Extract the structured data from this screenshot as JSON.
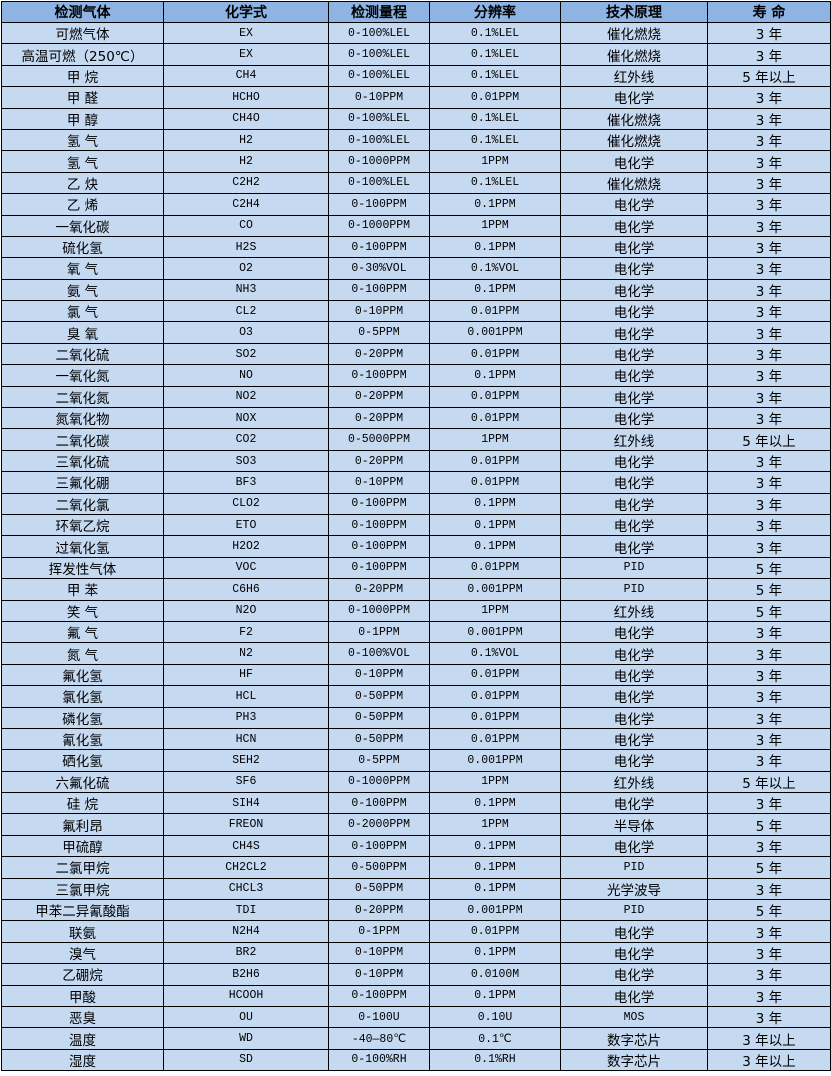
{
  "colors": {
    "header_bg": "#8db4e2",
    "row_bg": "#c5d9f1",
    "border": "#000000"
  },
  "headers": [
    "检测气体",
    "化学式",
    "检测量程",
    "分辨率",
    "技术原理",
    "寿 命"
  ],
  "rows": [
    [
      "可燃气体",
      "EX",
      "0-100%LEL",
      "0.1%LEL",
      "催化燃烧",
      "3 年"
    ],
    [
      "高温可燃（250℃）",
      "EX",
      "0-100%LEL",
      "0.1%LEL",
      "催化燃烧",
      "3 年"
    ],
    [
      "甲 烷",
      "CH4",
      "0-100%LEL",
      "0.1%LEL",
      "红外线",
      "5 年以上"
    ],
    [
      "甲 醛",
      "HCHO",
      "0-10PPM",
      "0.01PPM",
      "电化学",
      "3 年"
    ],
    [
      "甲 醇",
      "CH4O",
      "0-100%LEL",
      "0.1%LEL",
      "催化燃烧",
      "3 年"
    ],
    [
      "氢 气",
      "H2",
      "0-100%LEL",
      "0.1%LEL",
      "催化燃烧",
      "3 年"
    ],
    [
      "氢 气",
      "H2",
      "0-1000PPM",
      "1PPM",
      "电化学",
      "3 年"
    ],
    [
      "乙 炔",
      "C2H2",
      "0-100%LEL",
      "0.1%LEL",
      "催化燃烧",
      "3 年"
    ],
    [
      "乙 烯",
      "C2H4",
      "0-100PPM",
      "0.1PPM",
      "电化学",
      "3 年"
    ],
    [
      "一氧化碳",
      "CO",
      "0-1000PPM",
      "1PPM",
      "电化学",
      "3 年"
    ],
    [
      "硫化氢",
      "H2S",
      "0-100PPM",
      "0.1PPM",
      "电化学",
      "3 年"
    ],
    [
      "氧 气",
      "O2",
      "0-30%VOL",
      "0.1%VOL",
      "电化学",
      "3 年"
    ],
    [
      "氨 气",
      "NH3",
      "0-100PPM",
      "0.1PPM",
      "电化学",
      "3 年"
    ],
    [
      "氯 气",
      "CL2",
      "0-10PPM",
      "0.01PPM",
      "电化学",
      "3 年"
    ],
    [
      "臭 氧",
      "O3",
      "0-5PPM",
      "0.001PPM",
      "电化学",
      "3 年"
    ],
    [
      "二氧化硫",
      "SO2",
      "0-20PPM",
      "0.01PPM",
      "电化学",
      "3 年"
    ],
    [
      "一氧化氮",
      "NO",
      "0-100PPM",
      "0.1PPM",
      "电化学",
      "3 年"
    ],
    [
      "二氧化氮",
      "NO2",
      "0-20PPM",
      "0.01PPM",
      "电化学",
      "3 年"
    ],
    [
      "氮氧化物",
      "NOX",
      "0-20PPM",
      "0.01PPM",
      "电化学",
      "3 年"
    ],
    [
      "二氧化碳",
      "CO2",
      "0-5000PPM",
      "1PPM",
      "红外线",
      "5 年以上"
    ],
    [
      "三氧化硫",
      "SO3",
      "0-20PPM",
      "0.01PPM",
      "电化学",
      "3 年"
    ],
    [
      "三氟化硼",
      "BF3",
      "0-10PPM",
      "0.01PPM",
      "电化学",
      "3 年"
    ],
    [
      "二氧化氯",
      "CLO2",
      "0-100PPM",
      "0.1PPM",
      "电化学",
      "3 年"
    ],
    [
      "环氧乙烷",
      "ETO",
      "0-100PPM",
      "0.1PPM",
      "电化学",
      "3 年"
    ],
    [
      "过氧化氢",
      "H2O2",
      "0-100PPM",
      "0.1PPM",
      "电化学",
      "3 年"
    ],
    [
      "挥发性气体",
      "VOC",
      "0-100PPM",
      "0.01PPM",
      "PID",
      "5 年"
    ],
    [
      "甲 苯",
      "C6H6",
      "0-20PPM",
      "0.001PPM",
      "PID",
      "5 年"
    ],
    [
      "笑 气",
      "N2O",
      "0-1000PPM",
      "1PPM",
      "红外线",
      "5 年"
    ],
    [
      "氟 气",
      "F2",
      "0-1PPM",
      "0.001PPM",
      "电化学",
      "3 年"
    ],
    [
      "氮 气",
      "N2",
      "0-100%VOL",
      "0.1%VOL",
      "电化学",
      "3 年"
    ],
    [
      "氟化氢",
      "HF",
      "0-10PPM",
      "0.01PPM",
      "电化学",
      "3 年"
    ],
    [
      "氯化氢",
      "HCL",
      "0-50PPM",
      "0.01PPM",
      "电化学",
      "3 年"
    ],
    [
      "磷化氢",
      "PH3",
      "0-50PPM",
      "0.01PPM",
      "电化学",
      "3 年"
    ],
    [
      "氰化氢",
      "HCN",
      "0-50PPM",
      "0.01PPM",
      "电化学",
      "3 年"
    ],
    [
      "硒化氢",
      "SEH2",
      "0-5PPM",
      "0.001PPM",
      "电化学",
      "3 年"
    ],
    [
      "六氟化硫",
      "SF6",
      "0-1000PPM",
      "1PPM",
      "红外线",
      "5 年以上"
    ],
    [
      "硅 烷",
      "SIH4",
      "0-100PPM",
      "0.1PPM",
      "电化学",
      "3 年"
    ],
    [
      "氟利昂",
      "FREON",
      "0-2000PPM",
      "1PPM",
      "半导体",
      "5 年"
    ],
    [
      "甲硫醇",
      "CH4S",
      "0-100PPM",
      "0.1PPM",
      "电化学",
      "3 年"
    ],
    [
      "二氯甲烷",
      "CH2CL2",
      "0-500PPM",
      "0.1PPM",
      "PID",
      "5 年"
    ],
    [
      "三氯甲烷",
      "CHCL3",
      "0-50PPM",
      "0.1PPM",
      "光学波导",
      "3 年"
    ],
    [
      "甲苯二异氰酸酯",
      "TDI",
      "0-20PPM",
      "0.001PPM",
      "PID",
      "5 年"
    ],
    [
      "联氨",
      "N2H4",
      "0-1PPM",
      "0.01PPM",
      "电化学",
      "3 年"
    ],
    [
      "溴气",
      "BR2",
      "0-10PPM",
      "0.1PPM",
      "电化学",
      "3 年"
    ],
    [
      "乙硼烷",
      "B2H6",
      "0-10PPM",
      "0.0100M",
      "电化学",
      "3 年"
    ],
    [
      "甲酸",
      "HCOOH",
      "0-100PPM",
      "0.1PPM",
      "电化学",
      "3 年"
    ],
    [
      "恶臭",
      "OU",
      "0-100U",
      "0.10U",
      "MOS",
      "3 年"
    ],
    [
      "温度",
      "WD",
      "-40—80℃",
      "0.1℃",
      "数字芯片",
      "3 年以上"
    ],
    [
      "湿度",
      "SD",
      "0-100%RH",
      "0.1%RH",
      "数字芯片",
      "3 年以上"
    ]
  ]
}
